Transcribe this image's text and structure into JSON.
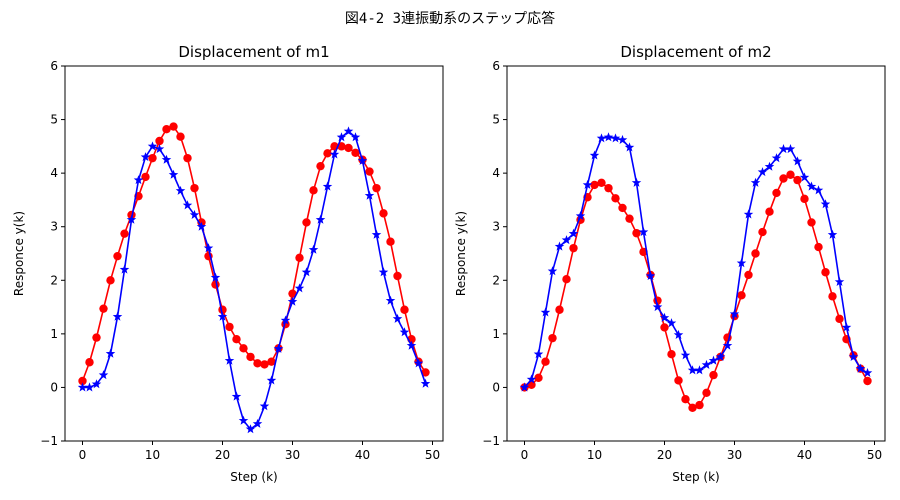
{
  "figure": {
    "suptitle": "図4-2 3連振動系のステップ応答"
  },
  "chart_data": [
    {
      "type": "line",
      "title": "Displacement of m1",
      "xlabel": "Step (k)",
      "ylabel": "Responce y(k)",
      "xlim": [
        -2.5,
        51.5
      ],
      "ylim": [
        -1,
        6
      ],
      "xticks": [
        0,
        10,
        20,
        30,
        40,
        50
      ],
      "yticks": [
        -1,
        0,
        1,
        2,
        3,
        4,
        5,
        6
      ],
      "grid": false,
      "x": [
        0,
        1,
        2,
        3,
        4,
        5,
        6,
        7,
        8,
        9,
        10,
        11,
        12,
        13,
        14,
        15,
        16,
        17,
        18,
        19,
        20,
        21,
        22,
        23,
        24,
        25,
        26,
        27,
        28,
        29,
        30,
        31,
        32,
        33,
        34,
        35,
        36,
        37,
        38,
        39,
        40,
        41,
        42,
        43,
        44,
        45,
        46,
        47,
        48,
        49
      ],
      "series": [
        {
          "color": "#ff0000",
          "marker": "circle",
          "values": [
            0.12,
            0.47,
            0.93,
            1.47,
            2.0,
            2.45,
            2.87,
            3.22,
            3.57,
            3.93,
            4.28,
            4.6,
            4.82,
            4.87,
            4.68,
            4.28,
            3.72,
            3.08,
            2.45,
            1.92,
            1.45,
            1.13,
            0.9,
            0.73,
            0.57,
            0.45,
            0.43,
            0.48,
            0.73,
            1.18,
            1.75,
            2.42,
            3.08,
            3.68,
            4.13,
            4.37,
            4.5,
            4.5,
            4.47,
            4.38,
            4.25,
            4.03,
            3.72,
            3.25,
            2.72,
            2.08,
            1.45,
            0.9,
            0.48,
            0.28
          ]
        },
        {
          "color": "#0000ff",
          "marker": "star",
          "values": [
            0.0,
            0.0,
            0.06,
            0.23,
            0.63,
            1.32,
            2.2,
            3.13,
            3.87,
            4.3,
            4.5,
            4.45,
            4.25,
            3.97,
            3.67,
            3.4,
            3.22,
            3.0,
            2.6,
            2.05,
            1.32,
            0.5,
            -0.17,
            -0.62,
            -0.78,
            -0.68,
            -0.35,
            0.13,
            0.72,
            1.25,
            1.6,
            1.85,
            2.15,
            2.57,
            3.13,
            3.75,
            4.35,
            4.67,
            4.78,
            4.67,
            4.23,
            3.58,
            2.85,
            2.15,
            1.62,
            1.28,
            1.03,
            0.78,
            0.45,
            0.07
          ]
        }
      ]
    },
    {
      "type": "line",
      "title": "Displacement of m2",
      "xlabel": "Step (k)",
      "ylabel": "Responce y(k)",
      "xlim": [
        -2.5,
        51.5
      ],
      "ylim": [
        -1,
        6
      ],
      "xticks": [
        0,
        10,
        20,
        30,
        40,
        50
      ],
      "yticks": [
        -1,
        0,
        1,
        2,
        3,
        4,
        5,
        6
      ],
      "grid": false,
      "x": [
        0,
        1,
        2,
        3,
        4,
        5,
        6,
        7,
        8,
        9,
        10,
        11,
        12,
        13,
        14,
        15,
        16,
        17,
        18,
        19,
        20,
        21,
        22,
        23,
        24,
        25,
        26,
        27,
        28,
        29,
        30,
        31,
        32,
        33,
        34,
        35,
        36,
        37,
        38,
        39,
        40,
        41,
        42,
        43,
        44,
        45,
        46,
        47,
        48,
        49
      ],
      "series": [
        {
          "color": "#ff0000",
          "marker": "circle",
          "values": [
            0.0,
            0.05,
            0.18,
            0.48,
            0.92,
            1.45,
            2.02,
            2.6,
            3.13,
            3.55,
            3.78,
            3.82,
            3.72,
            3.53,
            3.35,
            3.15,
            2.88,
            2.53,
            2.1,
            1.62,
            1.12,
            0.62,
            0.13,
            -0.22,
            -0.38,
            -0.33,
            -0.1,
            0.23,
            0.57,
            0.93,
            1.33,
            1.72,
            2.1,
            2.5,
            2.9,
            3.28,
            3.63,
            3.9,
            3.97,
            3.87,
            3.52,
            3.08,
            2.62,
            2.15,
            1.7,
            1.28,
            0.9,
            0.6,
            0.35,
            0.12
          ]
        },
        {
          "color": "#0000ff",
          "marker": "star",
          "values": [
            0.0,
            0.15,
            0.62,
            1.4,
            2.17,
            2.63,
            2.75,
            2.87,
            3.2,
            3.78,
            4.33,
            4.65,
            4.67,
            4.65,
            4.62,
            4.48,
            3.82,
            2.9,
            2.08,
            1.5,
            1.3,
            1.2,
            0.98,
            0.6,
            0.32,
            0.32,
            0.42,
            0.5,
            0.57,
            0.78,
            1.37,
            2.32,
            3.23,
            3.82,
            4.02,
            4.12,
            4.28,
            4.45,
            4.45,
            4.22,
            3.92,
            3.75,
            3.68,
            3.42,
            2.85,
            1.97,
            1.12,
            0.57,
            0.35,
            0.27
          ]
        }
      ]
    }
  ]
}
